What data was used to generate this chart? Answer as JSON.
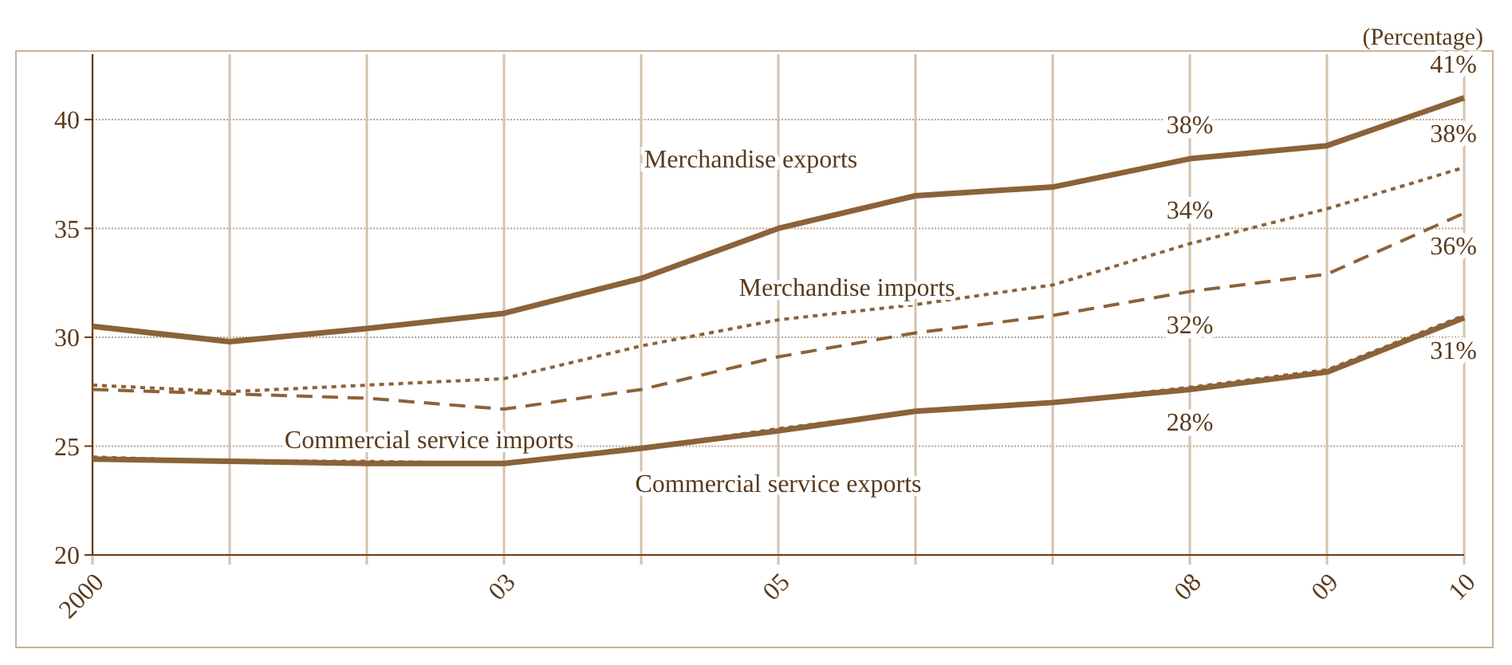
{
  "chart_data": {
    "type": "line",
    "ylabel": "(Percentage)",
    "x": [
      2000,
      2001,
      2002,
      2003,
      2004,
      2005,
      2006,
      2007,
      2008,
      2009,
      2010
    ],
    "xlim": [
      2000,
      2010
    ],
    "ylim": [
      20,
      43
    ],
    "yticks": [
      20,
      25,
      30,
      35,
      40
    ],
    "xticks": [
      {
        "value": 2000,
        "label": "2000"
      },
      {
        "value": 2001,
        "label": null
      },
      {
        "value": 2002,
        "label": null
      },
      {
        "value": 2003,
        "label": "03"
      },
      {
        "value": 2004,
        "label": null
      },
      {
        "value": 2005,
        "label": "05"
      },
      {
        "value": 2006,
        "label": null
      },
      {
        "value": 2007,
        "label": null
      },
      {
        "value": 2008,
        "label": "08"
      },
      {
        "value": 2009,
        "label": "09"
      },
      {
        "value": 2010,
        "label": "10"
      }
    ],
    "grid": true,
    "marker": "none",
    "series": [
      {
        "name": "Merchandise exports",
        "color": "#8c6239",
        "line_style": "solid",
        "values": [
          30.5,
          29.8,
          30.4,
          31.1,
          32.7,
          35.0,
          36.5,
          36.9,
          38.2,
          38.8,
          41.0
        ],
        "value_labels": [
          null,
          null,
          null,
          null,
          null,
          null,
          null,
          null,
          "38%",
          null,
          "41%"
        ]
      },
      {
        "name": "Merchandise imports",
        "color": "#8c6239",
        "line_style": "dotted",
        "values": [
          27.8,
          27.5,
          27.8,
          28.1,
          29.6,
          30.8,
          31.5,
          32.4,
          34.3,
          35.9,
          37.8
        ],
        "value_labels": [
          null,
          null,
          null,
          null,
          null,
          null,
          null,
          null,
          "34%",
          null,
          "38%"
        ]
      },
      {
        "color": "#8c6239",
        "line_style": "dashed",
        "values": [
          27.6,
          27.4,
          27.2,
          26.7,
          27.6,
          29.1,
          30.2,
          31.0,
          32.1,
          32.9,
          35.7
        ],
        "value_labels": [
          null,
          null,
          null,
          null,
          null,
          null,
          null,
          null,
          "32%",
          null,
          "36%"
        ]
      },
      {
        "name": "Commercial service imports",
        "color": "#8c6239",
        "line_style": "dotted",
        "values": [
          24.5,
          24.3,
          24.3,
          24.2,
          24.9,
          25.8,
          26.6,
          27.0,
          27.7,
          28.5,
          31.0
        ]
      },
      {
        "name": "Commercial service exports",
        "color": "#8c6239",
        "line_style": "solid",
        "values": [
          24.4,
          24.3,
          24.2,
          24.2,
          24.9,
          25.7,
          26.6,
          27.0,
          27.6,
          28.4,
          30.9
        ],
        "value_labels": [
          null,
          null,
          null,
          null,
          null,
          null,
          null,
          null,
          "28%",
          null,
          "31%"
        ]
      }
    ]
  }
}
